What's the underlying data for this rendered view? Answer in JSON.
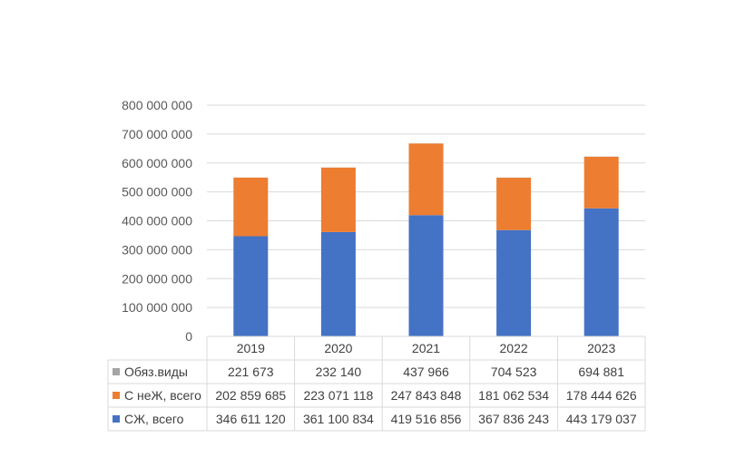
{
  "chart_data": {
    "type": "bar",
    "stacked": true,
    "categories": [
      "2019",
      "2020",
      "2021",
      "2022",
      "2023"
    ],
    "series": [
      {
        "name": "Обяз.виды",
        "color": "#a5a5a5",
        "values": [
          221673,
          232140,
          437966,
          704523,
          694881
        ],
        "labels": [
          "221 673",
          "232 140",
          "437 966",
          "704 523",
          "694 881"
        ]
      },
      {
        "name": "С неЖ, всего",
        "color": "#ed7d31",
        "values": [
          202859685,
          223071118,
          247843848,
          181062534,
          178444626
        ],
        "labels": [
          "202 859 685",
          "223 071 118",
          "247 843 848",
          "181 062 534",
          "178 444 626"
        ]
      },
      {
        "name": "СЖ, всего",
        "color": "#4472c4",
        "values": [
          346611120,
          361100834,
          419516856,
          367836243,
          443179037
        ],
        "labels": [
          "346 611 120",
          "361 100 834",
          "419 516 856",
          "367 836 243",
          "443 179 037"
        ]
      }
    ],
    "stack_order": [
      "СЖ, всего",
      "С неЖ, всего",
      "Обяз.виды"
    ],
    "ylim": [
      0,
      800000000
    ],
    "yticks": [
      0,
      100000000,
      200000000,
      300000000,
      400000000,
      500000000,
      600000000,
      700000000,
      800000000
    ],
    "ytick_labels": [
      "0",
      "100 000 000",
      "200 000 000",
      "300 000 000",
      "400 000 000",
      "500 000 000",
      "600 000 000",
      "700 000 000",
      "800 000 000"
    ],
    "grid": true,
    "legend": "data-table",
    "title": "",
    "xlabel": "",
    "ylabel": ""
  }
}
